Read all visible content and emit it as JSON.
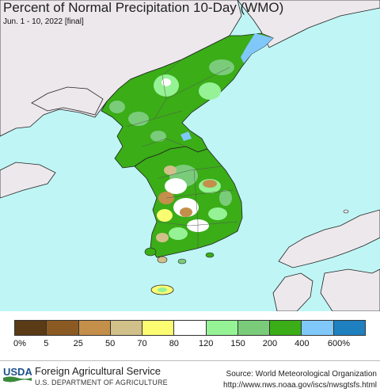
{
  "header": {
    "title": "Percent of Normal Precipitation 10-Day (WMO)",
    "subtitle": "Jun. 1 - 10, 2022 [final]"
  },
  "map": {
    "region": "Korean Peninsula",
    "ocean_color": "#bff5f5",
    "land_outside_color": "#ece8ec"
  },
  "legend": {
    "colors": [
      "#5a3b15",
      "#8b5a22",
      "#c48f4b",
      "#d2c08a",
      "#fcfc72",
      "#ffffff",
      "#95f295",
      "#7acc7a",
      "#3aad17",
      "#80c8fa",
      "#1f80c0"
    ],
    "labels": [
      "0%",
      "5",
      "25",
      "50",
      "70",
      "80",
      "120",
      "150",
      "200",
      "400",
      "600%"
    ]
  },
  "footer": {
    "logo_text": "USDA",
    "agency": "Foreign Agricultural Service",
    "department": "U.S. DEPARTMENT OF AGRICULTURE",
    "source": "Source: World Meteorological Organization",
    "url": "http://www.nws.noaa.gov/iscs/nwsgtsfs.html"
  }
}
